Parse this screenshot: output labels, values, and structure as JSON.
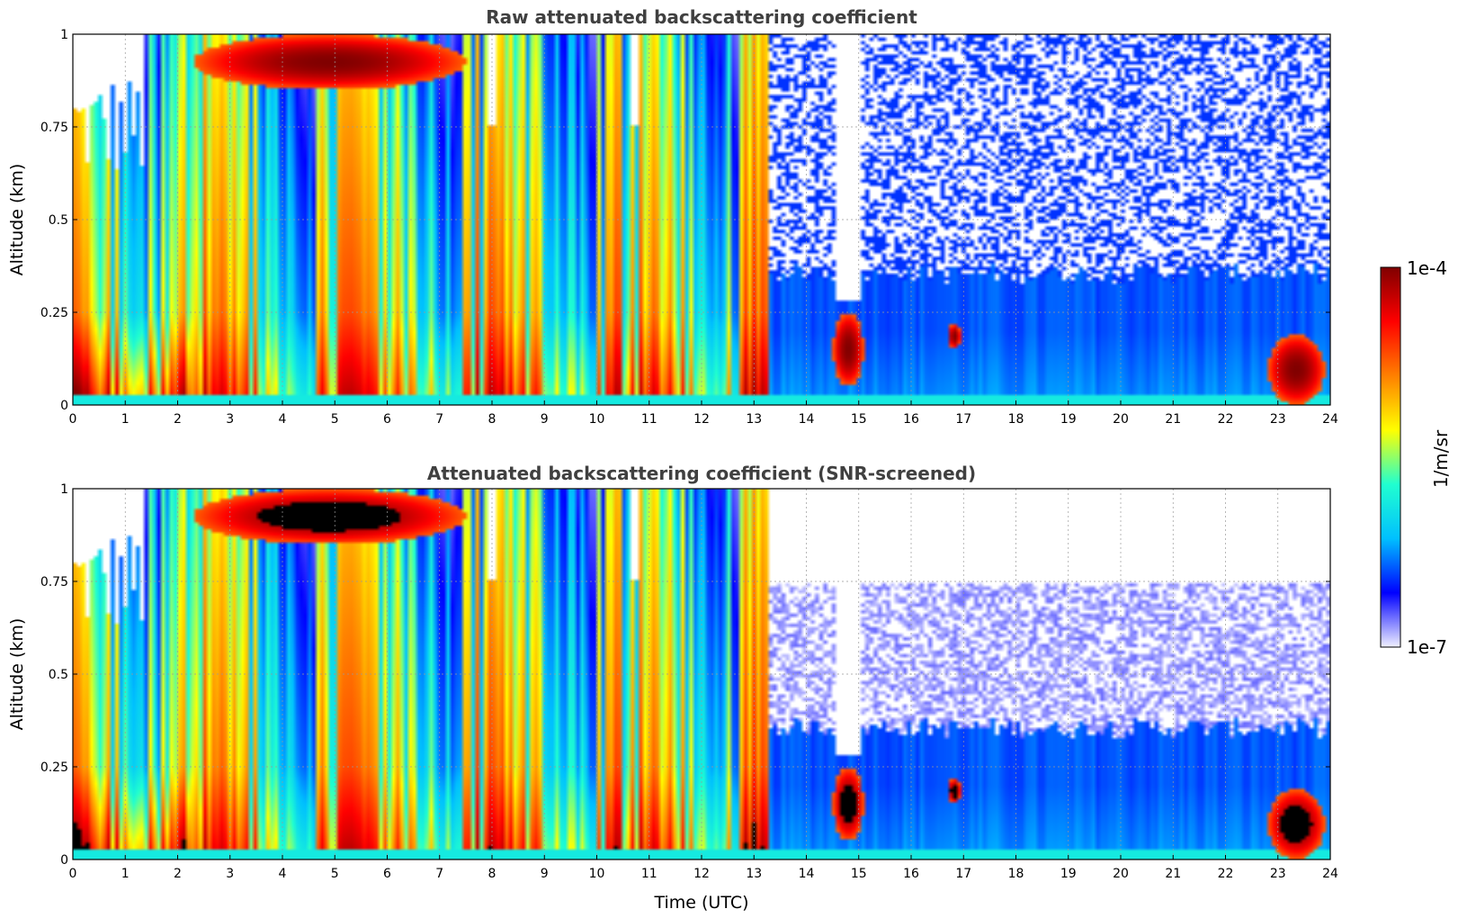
{
  "chart_data": [
    {
      "type": "heatmap",
      "title": "Raw attenuated backscattering coefficient",
      "xlabel": "",
      "ylabel": "Altitude (km)",
      "xlim": [
        0,
        24
      ],
      "ylim": [
        0,
        1
      ],
      "x_ticks": [
        0,
        1,
        2,
        3,
        4,
        5,
        6,
        7,
        8,
        9,
        10,
        11,
        12,
        13,
        14,
        15,
        16,
        17,
        18,
        19,
        20,
        21,
        22,
        23,
        24
      ],
      "y_ticks": [
        "0",
        "0.25",
        "0.5",
        "0.75",
        "1"
      ],
      "y_tick_values": [
        0,
        0.25,
        0.5,
        0.75,
        1
      ],
      "grid": true,
      "colorscale": "jet",
      "color_log_range": [
        -7,
        -4
      ],
      "regimes": [
        {
          "from": 0,
          "to": 13.3,
          "description": "dense aerosol/cloud return, signal to top of profile"
        },
        {
          "from": 13.3,
          "to": 24,
          "description": "low signal above ~0.35 km, noisy speckle"
        }
      ],
      "features": [
        {
          "x": [
            14.5,
            15.1
          ],
          "y": [
            0.05,
            0.25
          ],
          "level": "high"
        },
        {
          "x": [
            16.7,
            16.95
          ],
          "y": [
            0.15,
            0.22
          ],
          "level": "high"
        },
        {
          "x": [
            22.8,
            23.9
          ],
          "y": [
            0.0,
            0.19
          ],
          "level": "high"
        },
        {
          "x": [
            2.3,
            7.5
          ],
          "y": [
            0.85,
            1.0
          ],
          "level": "high"
        }
      ]
    },
    {
      "type": "heatmap",
      "title": "Attenuated backscattering coefficient (SNR-screened)",
      "xlabel": "Time (UTC)",
      "ylabel": "Altitude (km)",
      "xlim": [
        0,
        24
      ],
      "ylim": [
        0,
        1
      ],
      "x_ticks": [
        0,
        1,
        2,
        3,
        4,
        5,
        6,
        7,
        8,
        9,
        10,
        11,
        12,
        13,
        14,
        15,
        16,
        17,
        18,
        19,
        20,
        21,
        22,
        23,
        24
      ],
      "y_ticks": [
        "0",
        "0.25",
        "0.5",
        "0.75",
        "1"
      ],
      "y_tick_values": [
        0,
        0.25,
        0.5,
        0.75,
        1
      ],
      "grid": true,
      "colorscale": "jet",
      "color_log_range": [
        -7,
        -4
      ],
      "masked_color": "#000000",
      "regimes": [
        {
          "from": 0,
          "to": 13.3,
          "description": "dense return, saturated regions screened black"
        },
        {
          "from": 13.3,
          "to": 24,
          "description": "screened, faint pale retrievals above ~0.5 km"
        }
      ]
    }
  ],
  "colorbar": {
    "max_label": "1e-4",
    "min_label": "1e-7",
    "unit_label": "1/m/sr",
    "colormap": [
      "#f0f0ff",
      "#0000ff",
      "#00c0ff",
      "#20ffd0",
      "#ffff00",
      "#ff8000",
      "#ff0000",
      "#800000"
    ]
  }
}
